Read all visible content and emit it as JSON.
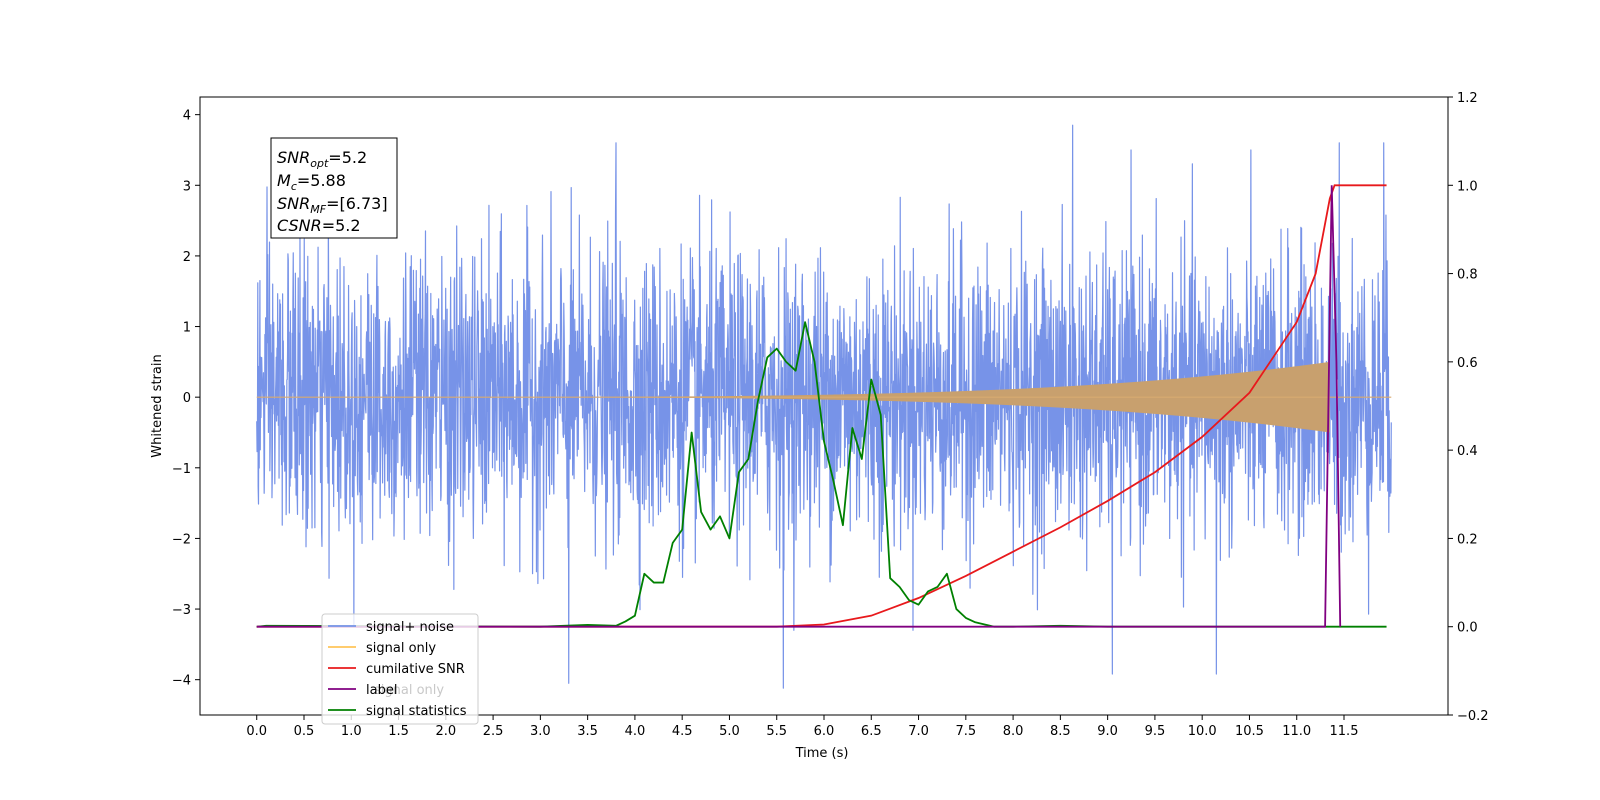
{
  "chart_data": {
    "type": "line",
    "xlabel": "Time (s)",
    "ylabel": "Whitened strain",
    "x_ticks": [
      0.0,
      0.5,
      1.0,
      1.5,
      2.0,
      2.5,
      3.0,
      3.5,
      4.0,
      4.5,
      5.0,
      5.5,
      6.0,
      6.5,
      7.0,
      7.5,
      8.0,
      8.5,
      9.0,
      9.5,
      10.0,
      10.5,
      11.0,
      11.5
    ],
    "x_tick_labels": [
      "0.0",
      "0.5",
      "1.0",
      "1.5",
      "2.0",
      "2.5",
      "3.0",
      "3.5",
      "4.0",
      "4.5",
      "5.0",
      "5.5",
      "6.0",
      "6.5",
      "7.0",
      "7.5",
      "8.0",
      "8.5",
      "9.0",
      "9.5",
      "10.0",
      "10.5",
      "11.0",
      "11.5"
    ],
    "xlim": [
      -0.6,
      12.6
    ],
    "ylim_left": [
      -4.5,
      4.25
    ],
    "ylim_right": [
      -0.2,
      1.2
    ],
    "y_left_ticks": [
      4,
      3,
      2,
      1,
      0,
      -1,
      -2,
      -3,
      -4
    ],
    "y_left_tick_labels": [
      "4",
      "3",
      "2",
      "1",
      "0",
      "−1",
      "−2",
      "−3",
      "−4"
    ],
    "y_right_ticks": [
      1.2,
      1.0,
      0.8,
      0.6,
      0.4,
      0.2,
      0.0,
      -0.2
    ],
    "y_right_tick_labels": [
      "1.2",
      "1.0",
      "0.8",
      "0.6",
      "0.4",
      "0.2",
      "0.0",
      "−0.2"
    ],
    "grid": false,
    "legend_position": "lower-left",
    "info_box": {
      "lines": [
        {
          "main": "SNR",
          "sub": "opt",
          "value": "=5.2"
        },
        {
          "main": "M",
          "sub": "c",
          "value": "=5.88"
        },
        {
          "main": "SNR",
          "sub": "MF",
          "value": "=[6.73]"
        },
        {
          "main": "CSNR",
          "sub": "",
          "value": "=5.2"
        }
      ]
    },
    "series": [
      {
        "name": "signal+ noise",
        "axis": "left",
        "color": "#7793e8",
        "kind": "noise",
        "x_range": [
          0.0,
          12.0
        ],
        "amplitude_envelope": [
          -3.3,
          3.5
        ],
        "peaks": [
          {
            "x": 8.63,
            "y": 3.85
          },
          {
            "x": 5.57,
            "y": -4.12
          },
          {
            "x": 3.3,
            "y": -4.05
          },
          {
            "x": 9.05,
            "y": -3.92
          },
          {
            "x": 10.15,
            "y": -3.92
          },
          {
            "x": 3.8,
            "y": 3.6
          },
          {
            "x": 11.45,
            "y": 3.6
          },
          {
            "x": 11.92,
            "y": 3.6
          }
        ]
      },
      {
        "name": "signal only",
        "axis": "left",
        "color": "#c8a06e",
        "kind": "chirp",
        "x_range": [
          0.0,
          11.35
        ],
        "start_amplitude": 0.0,
        "end_amplitude": 0.5
      },
      {
        "name": "cumilative SNR",
        "axis": "right",
        "color": "#e8191c",
        "x": [
          0.0,
          5.5,
          6.0,
          6.5,
          7.0,
          7.5,
          8.0,
          8.5,
          9.0,
          9.5,
          10.0,
          10.5,
          11.0,
          11.2,
          11.35,
          11.4,
          11.95
        ],
        "y": [
          0.0,
          0.0,
          0.005,
          0.025,
          0.065,
          0.115,
          0.17,
          0.225,
          0.285,
          0.35,
          0.43,
          0.53,
          0.69,
          0.8,
          0.97,
          1.0,
          1.0
        ]
      },
      {
        "name": "label",
        "axis": "right",
        "color": "#800080",
        "x": [
          0.0,
          11.3,
          11.37,
          11.42,
          11.46
        ],
        "y": [
          0.0,
          0.0,
          1.0,
          0.6,
          0.0
        ]
      },
      {
        "name": "signal statistics",
        "axis": "right",
        "color": "#008000",
        "x": [
          0.0,
          0.1,
          3.0,
          3.5,
          3.8,
          3.9,
          4.0,
          4.1,
          4.2,
          4.3,
          4.4,
          4.5,
          4.6,
          4.7,
          4.8,
          4.9,
          5.0,
          5.1,
          5.2,
          5.3,
          5.4,
          5.5,
          5.6,
          5.7,
          5.8,
          5.9,
          6.0,
          6.1,
          6.2,
          6.3,
          6.4,
          6.5,
          6.6,
          6.7,
          6.8,
          6.9,
          7.0,
          7.1,
          7.2,
          7.3,
          7.4,
          7.5,
          7.6,
          7.7,
          7.8,
          8.0,
          8.5,
          9.0,
          9.5,
          11.0,
          11.5,
          11.95
        ],
        "y": [
          0.0,
          0.002,
          0.0,
          0.004,
          0.002,
          0.012,
          0.025,
          0.12,
          0.1,
          0.1,
          0.19,
          0.22,
          0.44,
          0.26,
          0.22,
          0.25,
          0.2,
          0.35,
          0.38,
          0.51,
          0.61,
          0.63,
          0.6,
          0.58,
          0.69,
          0.6,
          0.42,
          0.33,
          0.23,
          0.45,
          0.38,
          0.56,
          0.48,
          0.11,
          0.09,
          0.06,
          0.05,
          0.08,
          0.09,
          0.12,
          0.04,
          0.02,
          0.01,
          0.005,
          0.0,
          0.0,
          0.002,
          0.0,
          0.0,
          0.0,
          0.0,
          0.0
        ]
      }
    ],
    "legend": {
      "entries": [
        {
          "label": "signal+ noise",
          "color": "#7793e8"
        },
        {
          "label": "signal only",
          "color": "#ffc55a"
        },
        {
          "label": "cumilative SNR",
          "color": "#e8191c"
        },
        {
          "label": "label",
          "color": "#800080"
        },
        {
          "label": "signal statistics",
          "color": "#008000"
        }
      ],
      "occluded_text": "signal only"
    }
  }
}
